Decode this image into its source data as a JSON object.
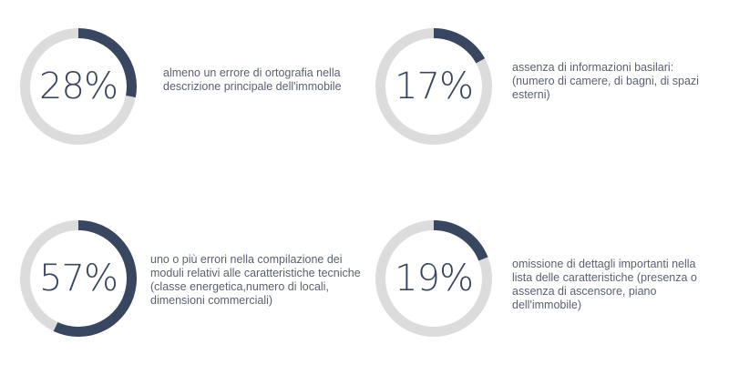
{
  "colors": {
    "track": "#dcdcdc",
    "fill": "#394660",
    "number": "#3a4660",
    "text": "#5b6170"
  },
  "chart_data": {
    "type": "pie",
    "variant": "donut-stat",
    "items": [
      {
        "value": 28,
        "label": "28%",
        "description": "almeno un errore di ortografia nella descrizione principale dell'immobile"
      },
      {
        "value": 17,
        "label": "17%",
        "description": "assenza di informazioni basilari: (numero di camere, di bagni, di spazi esterni)"
      },
      {
        "value": 57,
        "label": "57%",
        "description": "uno o più errori nella compilazione dei moduli relativi alle caratteristiche tecniche (classe energetica,numero di locali, dimensioni commerciali)"
      },
      {
        "value": 19,
        "label": "19%",
        "description": "omissione di dettagli importanti nella lista delle caratteristiche (presenza o assenza di ascensore, piano dell'immobile)"
      }
    ]
  }
}
